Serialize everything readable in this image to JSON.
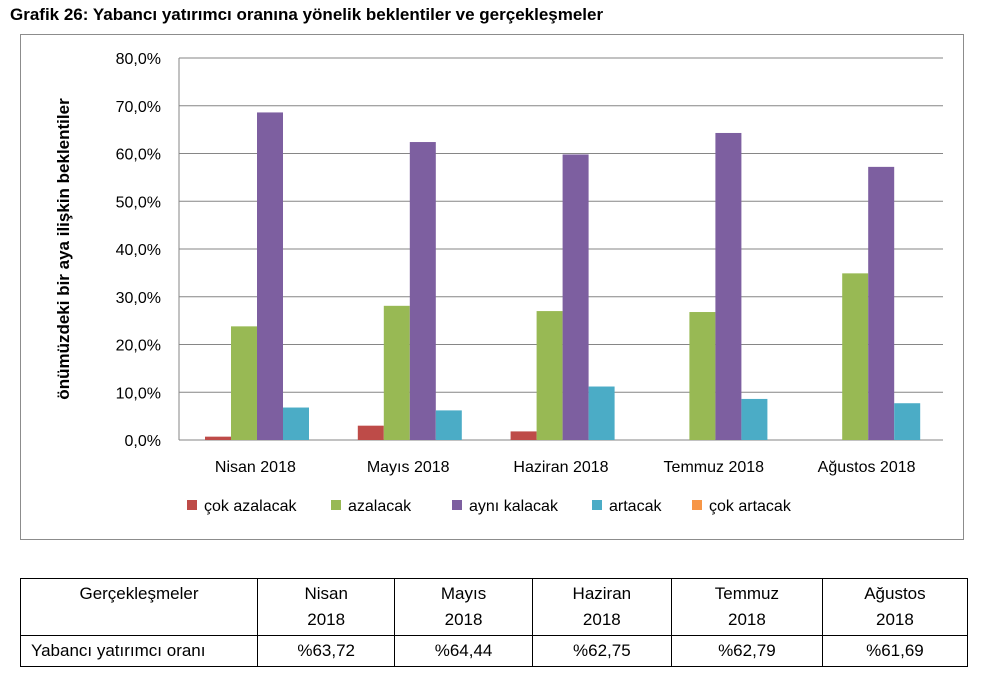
{
  "title": "Grafik 26: Yabancı yatırımcı oranına yönelik beklentiler ve gerçekleşmeler",
  "chart_data": {
    "type": "bar",
    "title": "",
    "xlabel": "",
    "ylabel": "önümüzdeki bir aya ilişkin beklentiler",
    "ylim": [
      0,
      80
    ],
    "yticks": [
      "0,0%",
      "10,0%",
      "20,0%",
      "30,0%",
      "40,0%",
      "50,0%",
      "60,0%",
      "70,0%",
      "80,0%"
    ],
    "ytick_values": [
      0,
      10,
      20,
      30,
      40,
      50,
      60,
      70,
      80
    ],
    "grid": true,
    "legend_position": "bottom",
    "categories": [
      "Nisan 2018",
      "Mayıs 2018",
      "Haziran 2018",
      "Temmuz 2018",
      "Ağustos 2018"
    ],
    "series": [
      {
        "name": "çok azalacak",
        "color": "#be4b48",
        "values": [
          0.7,
          3.0,
          1.8,
          0,
          0
        ]
      },
      {
        "name": "azalacak",
        "color": "#98b954",
        "values": [
          23.8,
          28.1,
          27.0,
          26.8,
          34.9
        ]
      },
      {
        "name": "aynı kalacak",
        "color": "#7d5fa0",
        "values": [
          68.6,
          62.4,
          59.8,
          64.3,
          57.2
        ]
      },
      {
        "name": "artacak",
        "color": "#4bacc6",
        "values": [
          6.8,
          6.2,
          11.2,
          8.6,
          7.7
        ]
      },
      {
        "name": "çok artacak",
        "color": "#f79646",
        "values": [
          0,
          0,
          0,
          0,
          0
        ]
      }
    ]
  },
  "table": {
    "header": [
      "Gerçekleşmeler",
      "Nisan 2018",
      "Mayıs 2018",
      "Haziran 2018",
      "Temmuz 2018",
      "Ağustos 2018"
    ],
    "header_lines": [
      [
        "Nisan",
        "2018"
      ],
      [
        "Mayıs",
        "2018"
      ],
      [
        "Haziran",
        "2018"
      ],
      [
        "Temmuz",
        "2018"
      ],
      [
        "Ağustos",
        "2018"
      ]
    ],
    "row_label": "Yabancı yatırımcı oranı",
    "row_values": [
      "%63,72",
      "%64,44",
      "%62,75",
      "%62,79",
      "%61,69"
    ]
  }
}
